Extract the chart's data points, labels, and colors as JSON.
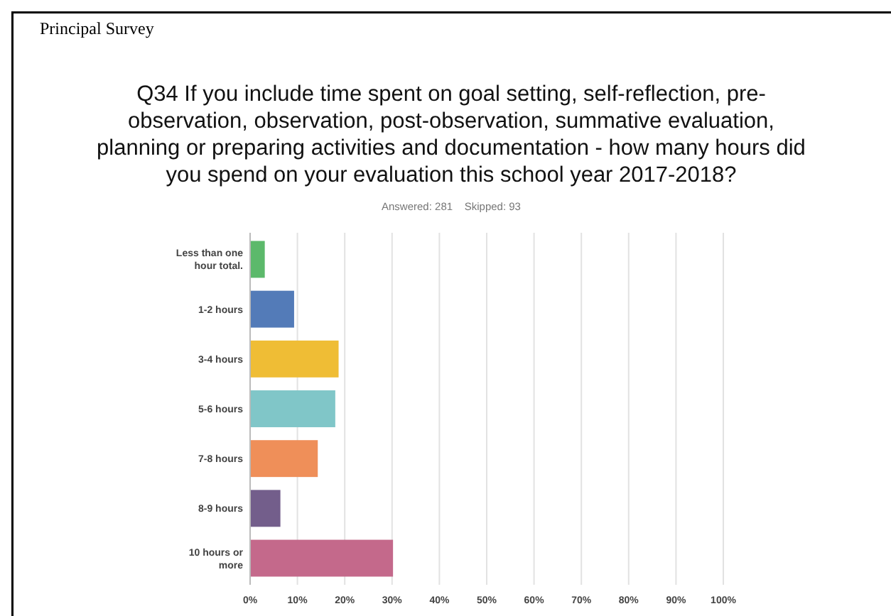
{
  "chart_data": {
    "type": "bar",
    "orientation": "horizontal",
    "title": "Q34 If you include time spent on goal setting, self-reflection, pre-observation, observation, post-observation, summative evaluation, planning or preparing activities and documentation - how many hours did you spend on your evaluation this school year 2017-2018?",
    "subtitle": "Answered: 281    Skipped: 93",
    "annotations": [
      "Principal Survey"
    ],
    "categories": [
      "Less than one hour total.",
      "1-2 hours",
      "3-4 hours",
      "5-6 hours",
      "7-8 hours",
      "8-9 hours",
      "10 hours or more"
    ],
    "values": [
      3.1,
      9.3,
      18.7,
      18.0,
      14.3,
      6.4,
      30.2
    ],
    "colors": [
      "#5cb96b",
      "#537bb8",
      "#efbd35",
      "#80c6c8",
      "#ef8f59",
      "#735e8b",
      "#c4698b"
    ],
    "xlim": [
      0,
      100
    ],
    "xticks": [
      {
        "value": 0,
        "label": "0%"
      },
      {
        "value": 10,
        "label": "10%"
      },
      {
        "value": 20,
        "label": "20%"
      },
      {
        "value": 30,
        "label": "30%"
      },
      {
        "value": 40,
        "label": "40%"
      },
      {
        "value": 50,
        "label": "50%"
      },
      {
        "value": 60,
        "label": "60%"
      },
      {
        "value": 70,
        "label": "70%"
      },
      {
        "value": 80,
        "label": "80%"
      },
      {
        "value": 90,
        "label": "90%"
      },
      {
        "value": 100,
        "label": "100%"
      }
    ],
    "grid": "x"
  }
}
